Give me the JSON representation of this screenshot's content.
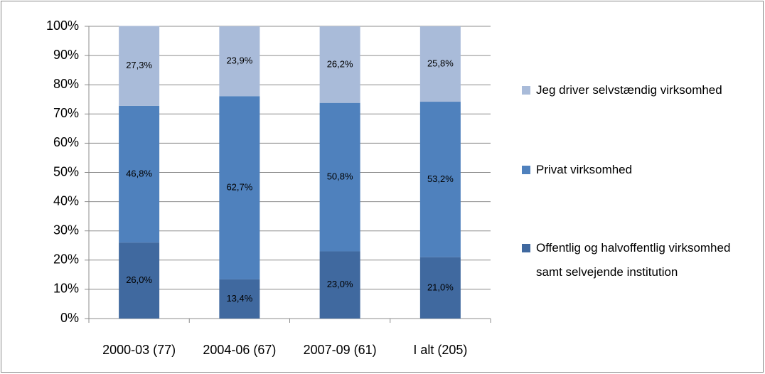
{
  "chart_data": {
    "type": "stacked_bar",
    "categories": [
      "2000-03 (77)",
      "2004-06 (67)",
      "2007-09 (61)",
      "I alt (205)"
    ],
    "series": [
      {
        "name": "Offentlig og halvoffentlig virksomhed samt selvejende institution",
        "color": "#40699f",
        "values": [
          26.0,
          13.4,
          23.0,
          21.0
        ],
        "value_labels": [
          "26,0%",
          "13,4%",
          "23,0%",
          "21,0%"
        ]
      },
      {
        "name": "Privat virksomhed",
        "color": "#4f81bd",
        "values": [
          46.8,
          62.7,
          50.8,
          53.2
        ],
        "value_labels": [
          "46,8%",
          "62,7%",
          "50,8%",
          "53,2%"
        ]
      },
      {
        "name": "Jeg driver selvstændig virksomhed",
        "color": "#a9bbd9",
        "values": [
          27.3,
          23.9,
          26.2,
          25.8
        ],
        "value_labels": [
          "27,3%",
          "23,9%",
          "26,2%",
          "25,8%"
        ]
      }
    ],
    "ylim": [
      0,
      100
    ],
    "yticks": [
      {
        "value": 0,
        "label": "0%"
      },
      {
        "value": 10,
        "label": "10%"
      },
      {
        "value": 20,
        "label": "20%"
      },
      {
        "value": 30,
        "label": "30%"
      },
      {
        "value": 40,
        "label": "40%"
      },
      {
        "value": 50,
        "label": "50%"
      },
      {
        "value": 60,
        "label": "60%"
      },
      {
        "value": 70,
        "label": "70%"
      },
      {
        "value": 80,
        "label": "80%"
      },
      {
        "value": 90,
        "label": "90%"
      },
      {
        "value": 100,
        "label": "100%"
      }
    ],
    "grid": true,
    "legend": "right"
  }
}
